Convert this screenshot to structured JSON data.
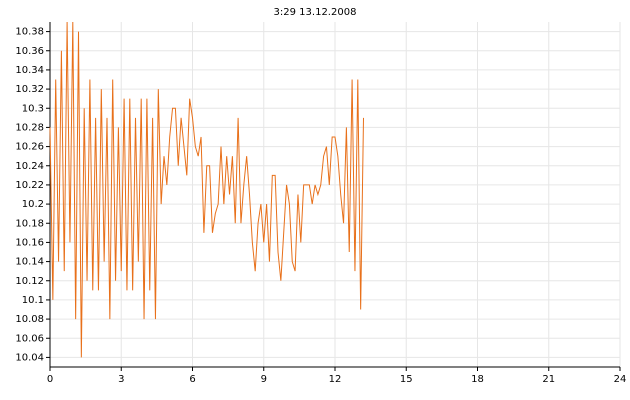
{
  "chart_data": {
    "type": "line",
    "title": "3:29 13.12.2008",
    "x": [
      0,
      0.12,
      0.24,
      0.36,
      0.48,
      0.6,
      0.72,
      0.84,
      0.96,
      1.08,
      1.2,
      1.32,
      1.44,
      1.56,
      1.68,
      1.8,
      1.92,
      2.04,
      2.16,
      2.28,
      2.4,
      2.52,
      2.64,
      2.76,
      2.88,
      3,
      3.12,
      3.24,
      3.36,
      3.48,
      3.6,
      3.72,
      3.84,
      3.96,
      4.08,
      4.2,
      4.32,
      4.44,
      4.56,
      4.68,
      4.8,
      4.92,
      5.04,
      5.16,
      5.28,
      5.4,
      5.52,
      5.64,
      5.76,
      5.88,
      6,
      6.12,
      6.24,
      6.36,
      6.48,
      6.6,
      6.72,
      6.84,
      6.96,
      7.08,
      7.2,
      7.32,
      7.44,
      7.56,
      7.68,
      7.8,
      7.92,
      8.04,
      8.16,
      8.28,
      8.4,
      8.52,
      8.64,
      8.76,
      8.88,
      9,
      9.12,
      9.24,
      9.36,
      9.48,
      9.6,
      9.72,
      9.84,
      9.96,
      10.08,
      10.2,
      10.32,
      10.44,
      10.56,
      10.68,
      10.8,
      10.92,
      11.04,
      11.16,
      11.28,
      11.4,
      11.52,
      11.64,
      11.76,
      11.88,
      12,
      12.12,
      12.24,
      12.36,
      12.48,
      12.6,
      12.72,
      12.84,
      12.96,
      13.08,
      13.2
    ],
    "series": [
      {
        "color": "#e8701a",
        "values": [
          10.28,
          10.1,
          10.33,
          10.14,
          10.36,
          10.13,
          10.39,
          10.16,
          10.39,
          10.08,
          10.38,
          10.04,
          10.3,
          10.12,
          10.33,
          10.11,
          10.29,
          10.11,
          10.32,
          10.14,
          10.29,
          10.08,
          10.33,
          10.12,
          10.28,
          10.13,
          10.31,
          10.11,
          10.31,
          10.11,
          10.29,
          10.14,
          10.31,
          10.08,
          10.31,
          10.11,
          10.29,
          10.08,
          10.32,
          10.2,
          10.25,
          10.22,
          10.27,
          10.3,
          10.3,
          10.24,
          10.29,
          10.26,
          10.23,
          10.31,
          10.29,
          10.26,
          10.25,
          10.27,
          10.17,
          10.24,
          10.24,
          10.17,
          10.19,
          10.2,
          10.26,
          10.2,
          10.25,
          10.21,
          10.25,
          10.18,
          10.29,
          10.18,
          10.22,
          10.25,
          10.21,
          10.16,
          10.13,
          10.18,
          10.2,
          10.16,
          10.2,
          10.14,
          10.23,
          10.23,
          10.15,
          10.12,
          10.17,
          10.22,
          10.2,
          10.14,
          10.13,
          10.21,
          10.16,
          10.22,
          10.22,
          10.22,
          10.2,
          10.22,
          10.21,
          10.22,
          10.25,
          10.26,
          10.22,
          10.27,
          10.27,
          10.25,
          10.21,
          10.18,
          10.28,
          10.15,
          10.33,
          10.13,
          10.33,
          10.09,
          10.29
        ]
      }
    ],
    "xlim": [
      0,
      24
    ],
    "xticks": [
      0,
      3,
      6,
      9,
      12,
      15,
      18,
      21,
      24
    ],
    "ylim": [
      10.03,
      10.39
    ],
    "yticks": [
      10.04,
      10.06,
      10.08,
      10.1,
      10.12,
      10.14,
      10.16,
      10.18,
      10.2,
      10.22,
      10.24,
      10.26,
      10.28,
      10.3,
      10.32,
      10.34,
      10.36,
      10.38
    ],
    "grid": true
  }
}
